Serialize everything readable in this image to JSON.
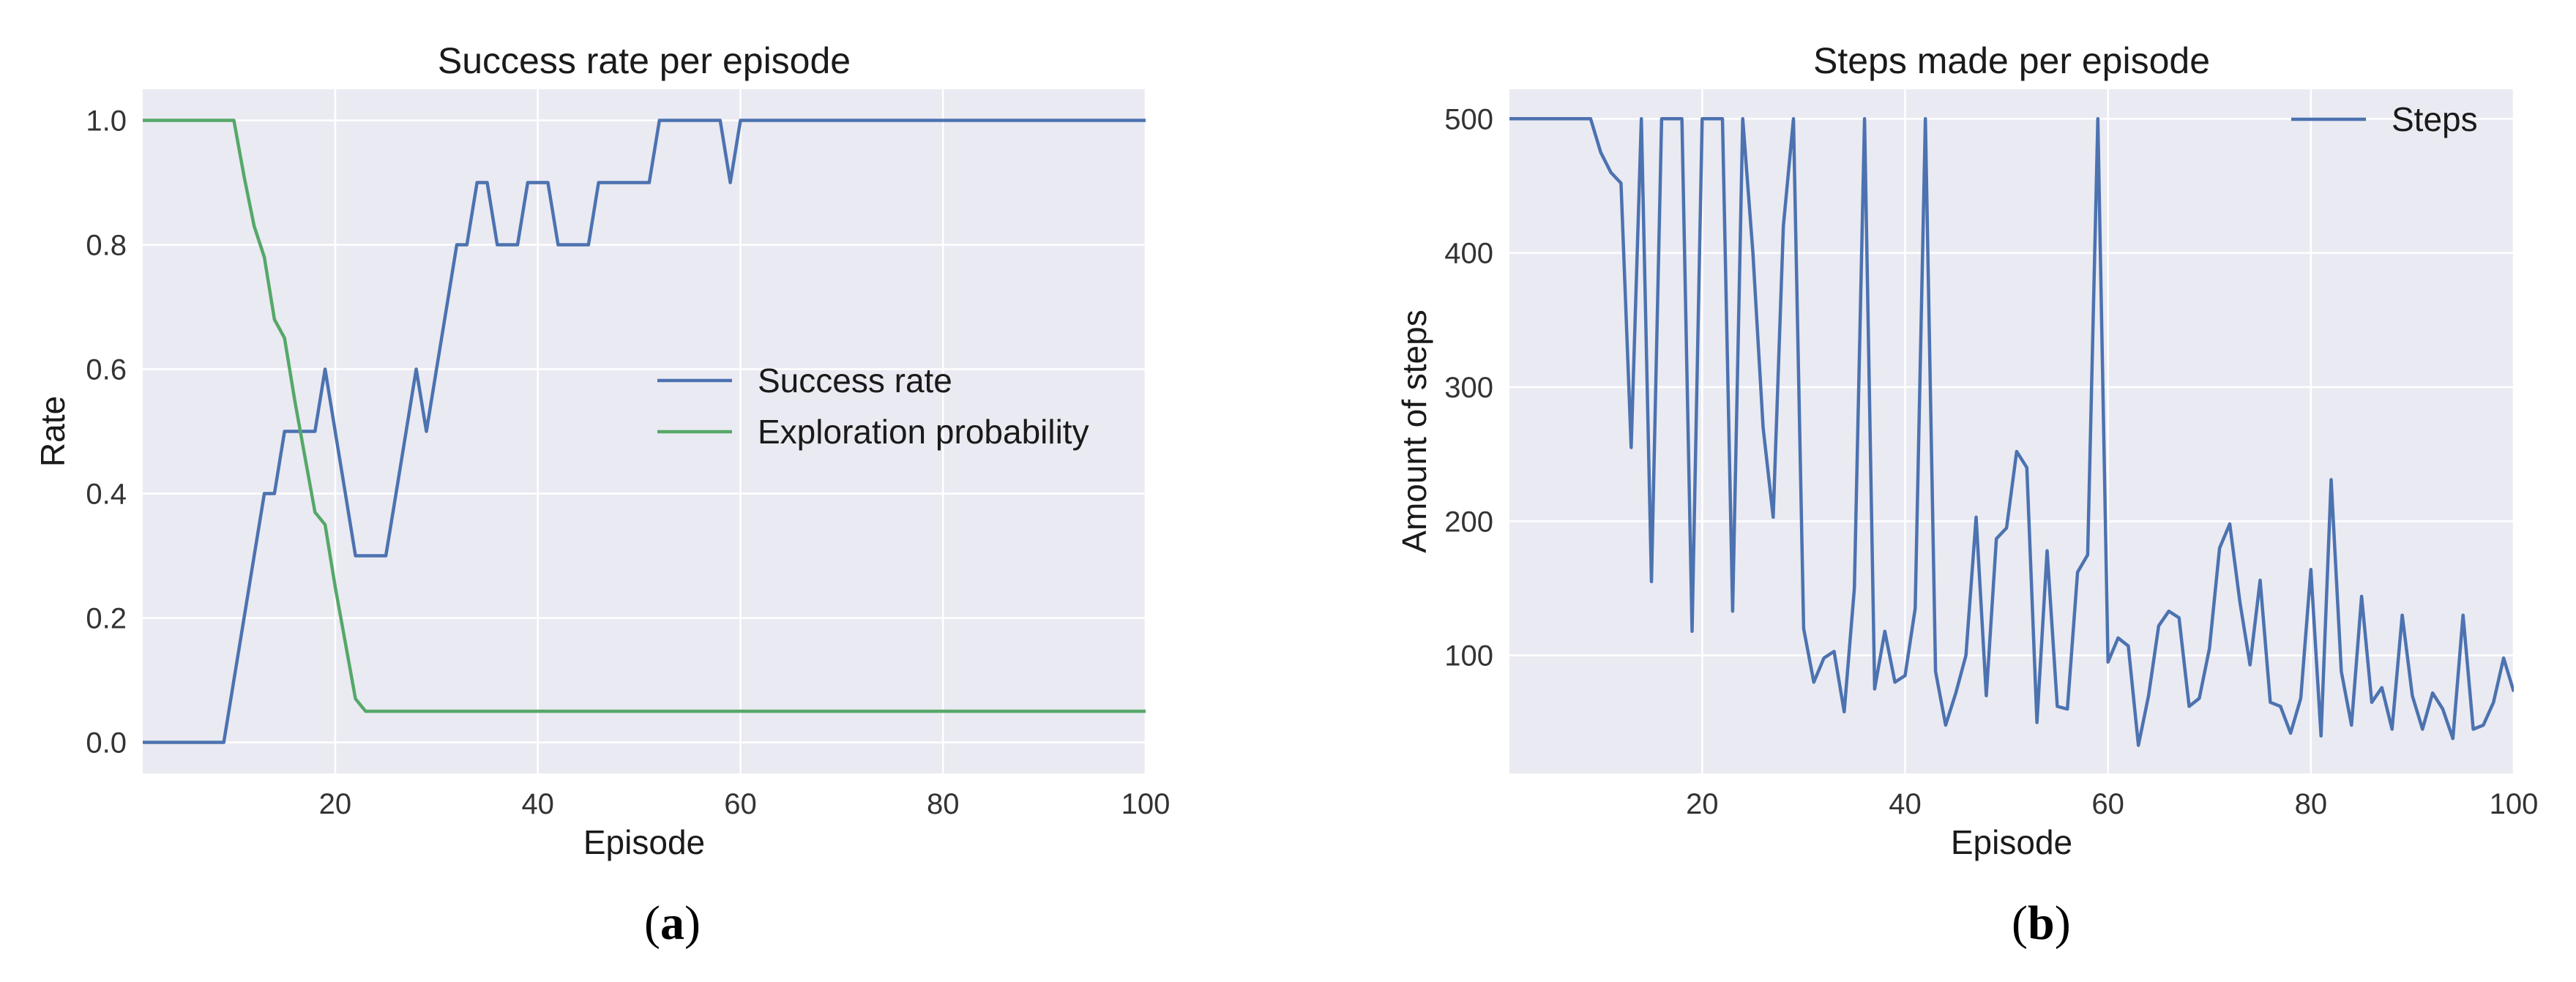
{
  "chart_data": [
    {
      "type": "line",
      "title": "Success rate per episode",
      "xlabel": "Episode",
      "ylabel": "Rate",
      "xlim": [
        1,
        100
      ],
      "ylim": [
        -0.05,
        1.05
      ],
      "xticks": [
        20,
        40,
        60,
        80,
        100
      ],
      "yticks": [
        0.0,
        0.2,
        0.4,
        0.6,
        0.8,
        1.0
      ],
      "ytick_labels": [
        "0.0",
        "0.2",
        "0.4",
        "0.6",
        "0.8",
        "1.0"
      ],
      "grid": true,
      "legend_position": "center-right",
      "caption_open": "(",
      "caption_letter": "a",
      "caption_close": ")",
      "series": [
        {
          "name": "Success rate",
          "color": "#4c72b0",
          "x": [
            1,
            9,
            10,
            11,
            12,
            13,
            14,
            15,
            16,
            17,
            18,
            19,
            20,
            21,
            22,
            23,
            24,
            25,
            26,
            27,
            28,
            29,
            30,
            31,
            32,
            33,
            34,
            35,
            36,
            37,
            38,
            39,
            40,
            41,
            42,
            43,
            44,
            45,
            46,
            47,
            48,
            49,
            50,
            51,
            52,
            53,
            54,
            55,
            56,
            57,
            58,
            59,
            60,
            100
          ],
          "y": [
            0.0,
            0.0,
            0.1,
            0.2,
            0.3,
            0.4,
            0.4,
            0.5,
            0.5,
            0.5,
            0.5,
            0.6,
            0.5,
            0.4,
            0.3,
            0.3,
            0.3,
            0.3,
            0.4,
            0.5,
            0.6,
            0.5,
            0.6,
            0.7,
            0.8,
            0.8,
            0.9,
            0.9,
            0.8,
            0.8,
            0.8,
            0.9,
            0.9,
            0.9,
            0.8,
            0.8,
            0.8,
            0.8,
            0.9,
            0.9,
            0.9,
            0.9,
            0.9,
            0.9,
            1.0,
            1.0,
            1.0,
            1.0,
            1.0,
            1.0,
            1.0,
            0.9,
            1.0,
            1.0
          ]
        },
        {
          "name": "Exploration probability",
          "color": "#55a868",
          "x": [
            1,
            10,
            11,
            12,
            13,
            14,
            15,
            16,
            17,
            18,
            19,
            20,
            21,
            22,
            23,
            100
          ],
          "y": [
            1.0,
            1.0,
            0.91,
            0.83,
            0.78,
            0.68,
            0.65,
            0.55,
            0.46,
            0.37,
            0.35,
            0.25,
            0.16,
            0.07,
            0.05,
            0.05
          ]
        }
      ]
    },
    {
      "type": "line",
      "title": "Steps made per episode",
      "xlabel": "Episode",
      "ylabel": "Amount of steps",
      "xlim": [
        1,
        100
      ],
      "ylim": [
        12,
        522
      ],
      "xticks": [
        20,
        40,
        60,
        80,
        100
      ],
      "yticks": [
        100,
        200,
        300,
        400,
        500
      ],
      "ytick_labels": [
        "100",
        "200",
        "300",
        "400",
        "500"
      ],
      "grid": true,
      "legend_position": "top-right",
      "caption_open": "(",
      "caption_letter": "b",
      "caption_close": ")",
      "series": [
        {
          "name": "Steps",
          "color": "#4c72b0",
          "x": [
            1,
            9,
            10,
            11,
            12,
            13,
            14,
            15,
            16,
            17,
            18,
            19,
            20,
            21,
            22,
            23,
            24,
            25,
            26,
            27,
            28,
            29,
            30,
            31,
            32,
            33,
            34,
            35,
            36,
            37,
            38,
            39,
            40,
            41,
            42,
            43,
            44,
            45,
            46,
            47,
            48,
            49,
            50,
            51,
            52,
            53,
            54,
            55,
            56,
            57,
            58,
            59,
            60,
            61,
            62,
            63,
            64,
            65,
            66,
            67,
            68,
            69,
            70,
            71,
            72,
            73,
            74,
            75,
            76,
            77,
            78,
            79,
            80,
            81,
            82,
            83,
            84,
            85,
            86,
            87,
            88,
            89,
            90,
            91,
            92,
            93,
            94,
            95,
            96,
            97,
            98,
            99,
            100
          ],
          "y": [
            500,
            500,
            475,
            460,
            452,
            255,
            500,
            155,
            500,
            500,
            500,
            118,
            500,
            500,
            500,
            133,
            500,
            400,
            270,
            203,
            420,
            500,
            120,
            80,
            98,
            103,
            58,
            150,
            500,
            75,
            118,
            80,
            85,
            135,
            500,
            88,
            48,
            72,
            100,
            203,
            70,
            187,
            195,
            252,
            240,
            50,
            178,
            62,
            60,
            162,
            175,
            500,
            95,
            113,
            107,
            33,
            70,
            122,
            133,
            128,
            62,
            68,
            105,
            180,
            198,
            140,
            93,
            156,
            65,
            62,
            42,
            68,
            164,
            40,
            231,
            88,
            48,
            144,
            65,
            76,
            45,
            130,
            70,
            45,
            72,
            60,
            38,
            130,
            45,
            48,
            65,
            98,
            73
          ]
        }
      ]
    }
  ]
}
